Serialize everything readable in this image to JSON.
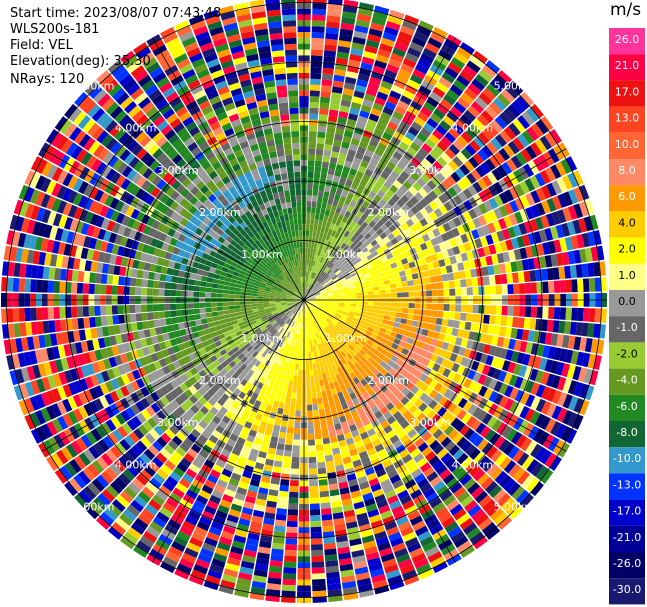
{
  "header": {
    "start_time_label": "Start time: 2023/08/07 07:43:48",
    "instrument": "WLS200s-181",
    "field_label": "Field: VEL",
    "elevation_label": "Elevation(deg): 35.30",
    "nrays_label": "NRays: 120"
  },
  "colorbar": {
    "units": "m/s",
    "ticks": [
      "26.0",
      "21.0",
      "17.0",
      "13.0",
      "10.0",
      "8.0",
      "6.0",
      "4.0",
      "2.0",
      "1.0",
      "0.0",
      "-1.0",
      "-2.0",
      "-4.0",
      "-6.0",
      "-8.0",
      "-10.0",
      "-13.0",
      "-17.0",
      "-21.0",
      "-26.0",
      "-30.0"
    ],
    "colors": [
      "#ff3399",
      "#ff0044",
      "#ee1111",
      "#ff4422",
      "#ff6633",
      "#ff8866",
      "#ff9900",
      "#ffcc00",
      "#ffff00",
      "#ffff88",
      "#999999",
      "#666666",
      "#99cc33",
      "#669922",
      "#228822",
      "#116633",
      "#3399cc",
      "#0033ff",
      "#0000cc",
      "#000099",
      "#000066",
      "#191970"
    ]
  },
  "chart_data": {
    "type": "polar-ppi",
    "field": "VEL",
    "units": "m/s",
    "nrays": 120,
    "elevation_deg": 35.3,
    "range_rings_km": [
      1.0,
      2.0,
      3.0,
      4.0,
      5.0
    ],
    "ring_labels": [
      "1.00km",
      "2.00km",
      "3.00km",
      "4.00km",
      "5.00km"
    ],
    "max_range_km": 5.1,
    "value_range": [
      -30.0,
      26.0
    ]
  }
}
